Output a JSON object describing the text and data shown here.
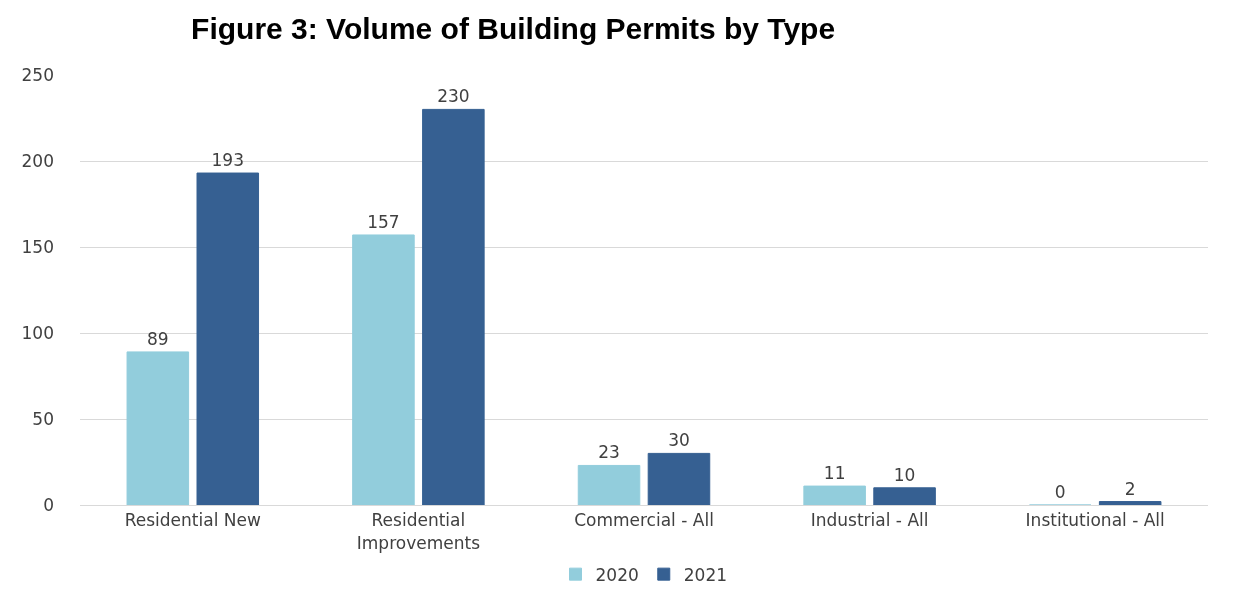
{
  "chart_data": {
    "type": "bar",
    "title": "Figure 3: Volume of Building Permits by Type",
    "categories": [
      "Residential New",
      "Residential Improvements",
      "Commercial - All",
      "Industrial - All",
      "Institutional - All"
    ],
    "series": [
      {
        "name": "2020",
        "color": "#92cddc",
        "values": [
          89,
          157,
          23,
          11,
          0
        ]
      },
      {
        "name": "2021",
        "color": "#366092",
        "values": [
          193,
          230,
          30,
          10,
          2
        ]
      }
    ],
    "ylim": [
      0,
      250
    ],
    "yticks": [
      0,
      50,
      100,
      150,
      200,
      250
    ],
    "grid": "y",
    "legend": "bottom",
    "data_labels": true
  }
}
